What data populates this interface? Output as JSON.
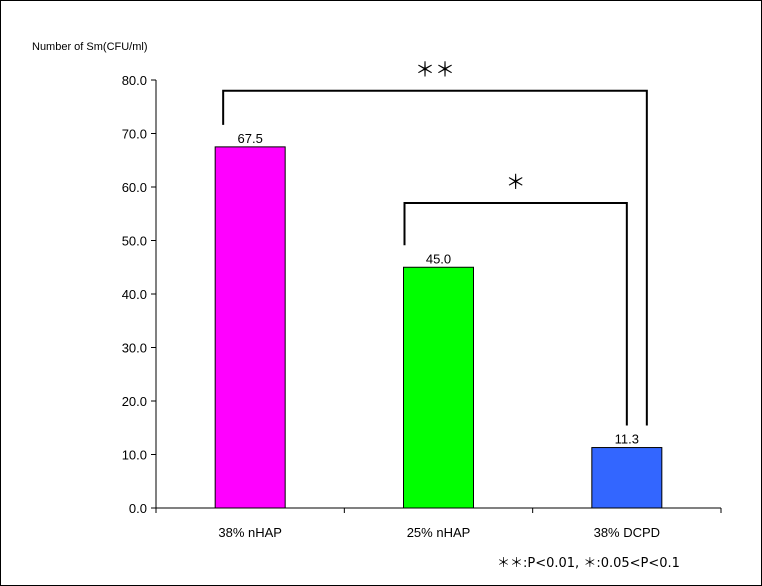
{
  "chart_data": {
    "type": "bar",
    "ylabel": "Number of Sm(CFU/ml)",
    "xlabel": "",
    "categories": [
      "38% nHAP",
      "25% nHAP",
      "38% DCPD"
    ],
    "values": [
      67.5,
      45.0,
      11.3
    ],
    "data_labels": [
      "67.5",
      "45.0",
      "11.3"
    ],
    "bar_colors": [
      "#ff00ff",
      "#00ff00",
      "#3366ff"
    ],
    "ylim": [
      0,
      80
    ],
    "yticks": [
      0,
      10,
      20,
      30,
      40,
      50,
      60,
      70,
      80
    ],
    "ytick_labels": [
      "0.0",
      "10.0",
      "20.0",
      "30.0",
      "40.0",
      "50.0",
      "60.0",
      "70.0",
      "80.0"
    ],
    "grid": false,
    "significance": [
      {
        "from": 0,
        "to": 2,
        "level_value": 78,
        "mark": "＊＊"
      },
      {
        "from": 1,
        "to": 2,
        "level_value": 57,
        "mark": "＊"
      }
    ],
    "footnote": "＊＊:P<0.01,  ＊:0.05<P<0.1"
  }
}
